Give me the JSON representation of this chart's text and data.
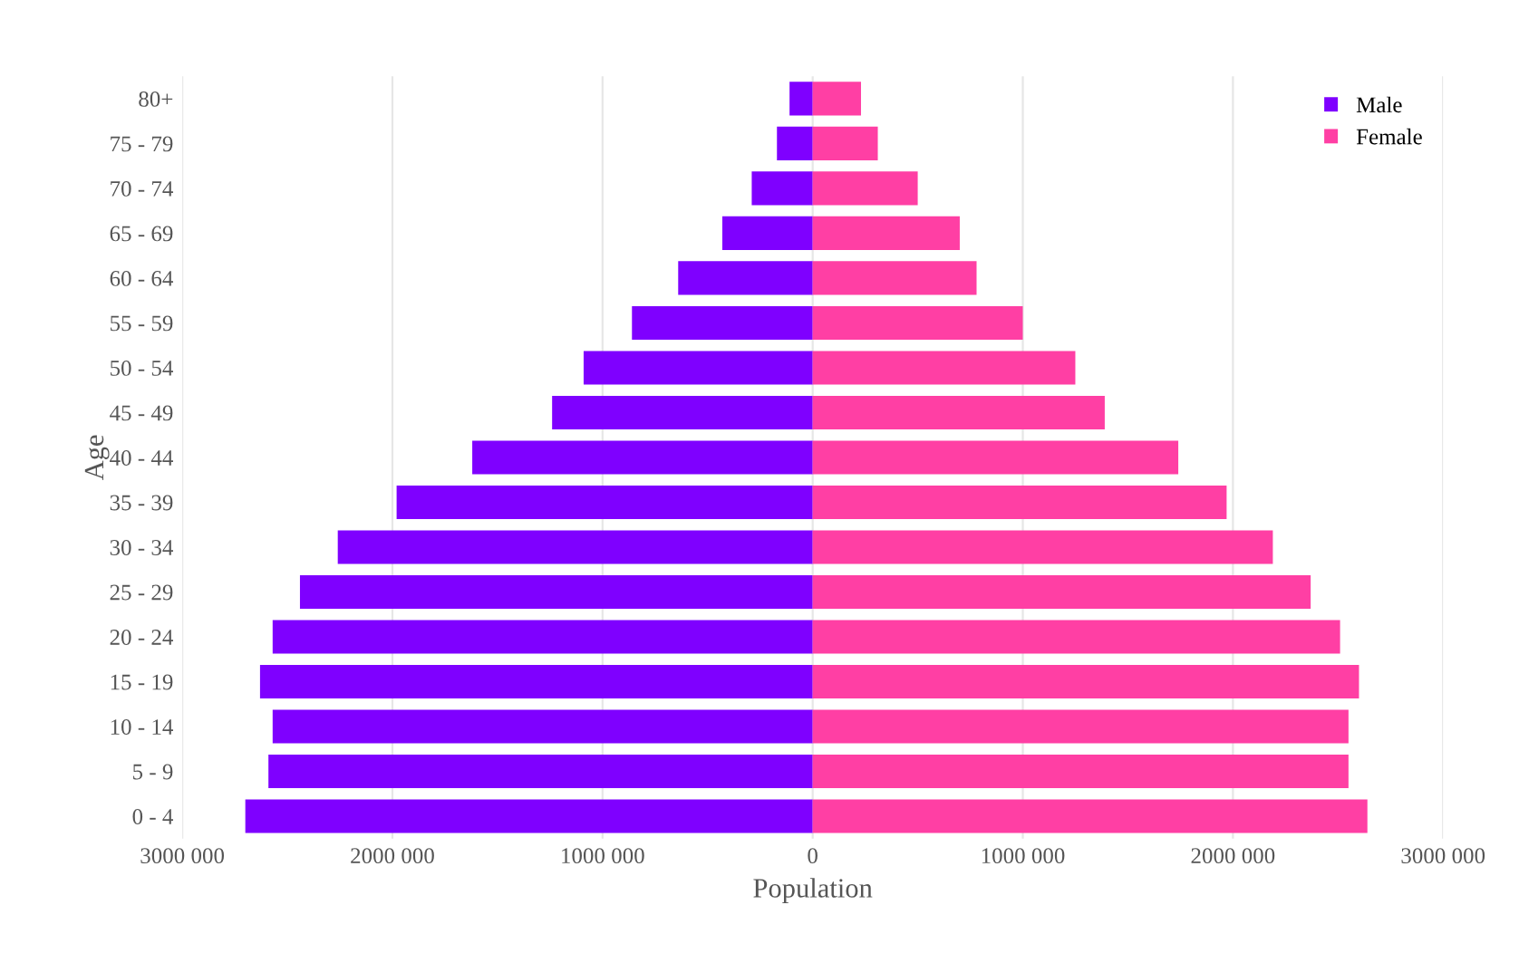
{
  "chart_data": {
    "type": "bar",
    "orientation": "horizontal",
    "xlabel": "Population",
    "ylabel": "Age",
    "categories": [
      "80+",
      "75 - 79",
      "70 - 74",
      "65 - 69",
      "60 - 64",
      "55 - 59",
      "50 - 54",
      "45 - 49",
      "40 - 44",
      "35 - 39",
      "30 - 34",
      "25 - 29",
      "20 - 24",
      "15 - 19",
      "10 - 14",
      "5 - 9",
      "0 - 4"
    ],
    "series": [
      {
        "name": "Male",
        "color": "#7f00ff",
        "values": [
          -110000,
          -170000,
          -290000,
          -430000,
          -640000,
          -860000,
          -1090000,
          -1240000,
          -1620000,
          -1980000,
          -2260000,
          -2440000,
          -2570000,
          -2630000,
          -2570000,
          -2590000,
          -2700000
        ]
      },
      {
        "name": "Female",
        "color": "#ff3fa4",
        "values": [
          230000,
          310000,
          500000,
          700000,
          780000,
          1000000,
          1250000,
          1390000,
          1740000,
          1970000,
          2190000,
          2370000,
          2510000,
          2600000,
          2550000,
          2550000,
          2640000
        ]
      }
    ],
    "xlim": [
      -3000000,
      3000000
    ],
    "stacked": true,
    "xticks": [
      {
        "value": -3000000,
        "label": "3000 000"
      },
      {
        "value": -2000000,
        "label": "2000 000"
      },
      {
        "value": -1000000,
        "label": "1000 000"
      },
      0,
      {
        "value": 1000000,
        "label": "1000 000"
      },
      {
        "value": 2000000,
        "label": "2000 000"
      },
      {
        "value": 3000000,
        "label": "3000 000"
      }
    ],
    "grid": "x",
    "legend": "top right"
  }
}
